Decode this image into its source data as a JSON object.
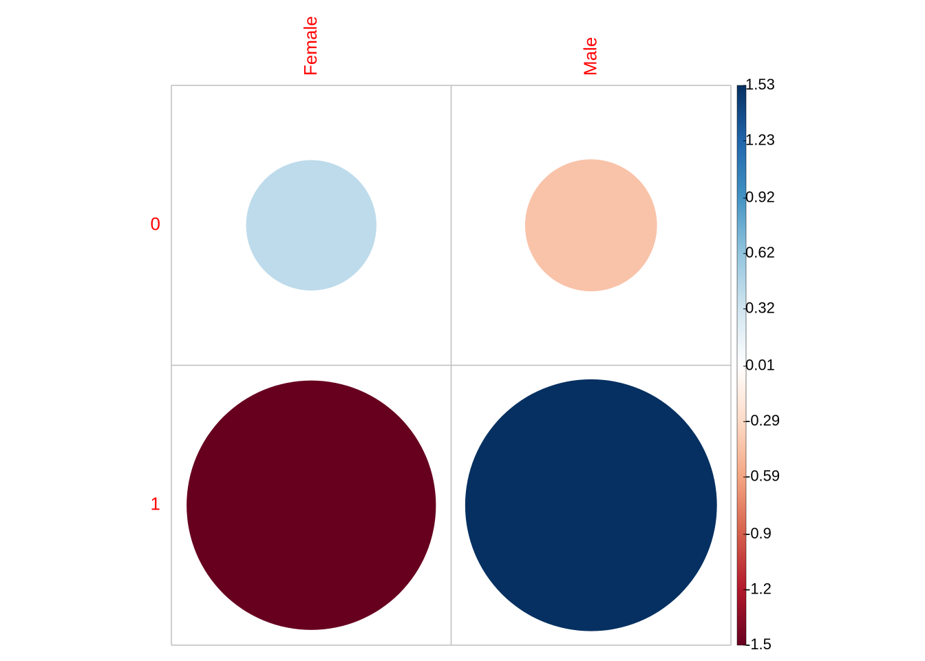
{
  "chart_data": {
    "type": "corrplot",
    "rows": [
      "0",
      "1"
    ],
    "columns": [
      "Female",
      "Male"
    ],
    "values": [
      [
        0.41,
        -0.42
      ],
      [
        -1.5,
        1.53
      ]
    ],
    "ylim": [
      -1.5,
      1.53
    ],
    "yticks": [
      -1.5,
      -1.2,
      -0.9,
      -0.59,
      -0.29,
      0.01,
      0.32,
      0.62,
      0.92,
      1.23,
      1.53
    ],
    "colormap": [
      "#67001F",
      "#B2182B",
      "#D6604D",
      "#F4A582",
      "#FDDBC7",
      "#FFFFFF",
      "#D1E5F0",
      "#92C5DE",
      "#4393C3",
      "#2166AC",
      "#053061"
    ],
    "grid": true
  }
}
